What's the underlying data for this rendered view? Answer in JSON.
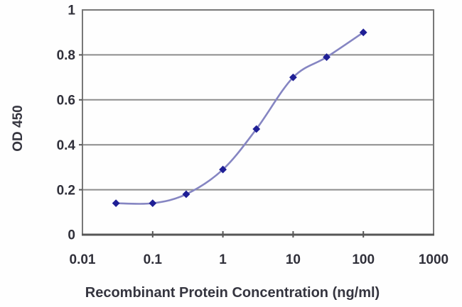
{
  "chart_data": {
    "type": "line",
    "title": "",
    "xlabel": "Recombinant Protein Concentration (ng/ml)",
    "ylabel": "OD 450",
    "x_scale": "log",
    "y_scale": "linear",
    "xlim": [
      0.01,
      1000
    ],
    "ylim": [
      0,
      1
    ],
    "x": [
      0.03,
      0.1,
      0.3,
      1,
      3,
      10,
      30,
      100
    ],
    "y": [
      0.14,
      0.14,
      0.18,
      0.29,
      0.47,
      0.7,
      0.79,
      0.9
    ],
    "xtick_values": [
      0.01,
      0.1,
      1,
      10,
      100,
      1000
    ],
    "xtick_labels": [
      "0.01",
      "0.1",
      "1",
      "10",
      "100",
      "1000"
    ],
    "ytick_values": [
      0,
      0.2,
      0.4,
      0.6,
      0.8,
      1
    ],
    "ytick_labels": [
      "0",
      "0.2",
      "0.4",
      "0.6",
      "0.8",
      "1"
    ],
    "grid": "horizontal",
    "legend": "none",
    "marker_shape": "diamond",
    "colors": {
      "line": "#8585c2",
      "marker": "#1f1f96",
      "grid": "#8c8c8c",
      "frame": "#787878",
      "axis": "#565656",
      "tick_text": "#30303a",
      "title_text": "#35353f",
      "background": "#fefefe"
    }
  }
}
